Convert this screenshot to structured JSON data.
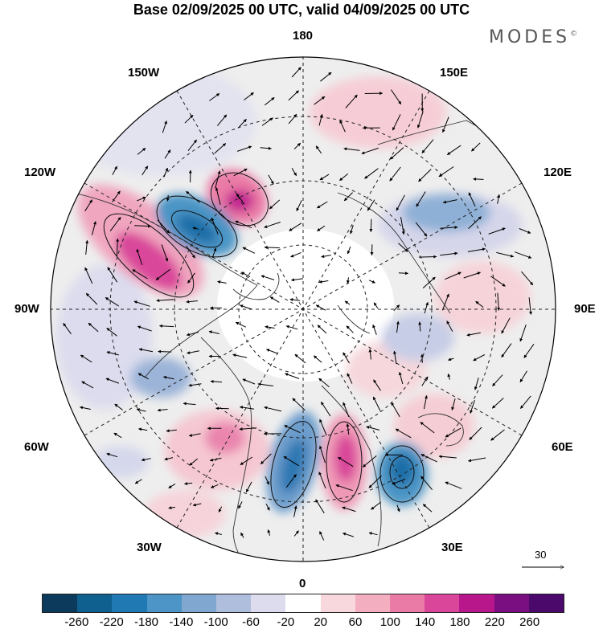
{
  "title": "Base 02/09/2025 00 UTC, valid 04/09/2025 00 UTC",
  "brand": "MODES",
  "brand_mark": "©",
  "map": {
    "projection": "north-polar-stereographic",
    "labels": {
      "top": "180",
      "bottom": "0",
      "left": "90W",
      "right": "90E",
      "upper_left_1": "150W",
      "upper_left_2": "120W",
      "lower_left_1": "60W",
      "lower_left_2": "30W",
      "upper_right_1": "150E",
      "upper_right_2": "120E",
      "lower_right_1": "60E",
      "lower_right_2": "30E"
    }
  },
  "reference_vector": {
    "label": "30"
  },
  "colorbar": {
    "ticks": [
      "-260",
      "-220",
      "-180",
      "-140",
      "-100",
      "-60",
      "-20",
      "20",
      "60",
      "100",
      "140",
      "180",
      "220",
      "260"
    ],
    "colors": [
      "#0b3a5c",
      "#0f5f8f",
      "#2179b4",
      "#4c95c6",
      "#7fa7cf",
      "#b0bede",
      "#dcdcee",
      "#ffffff",
      "#f8d8dc",
      "#f3aebf",
      "#ea7aa6",
      "#d9469a",
      "#b8178c",
      "#7a0f82",
      "#4b0a6b"
    ]
  },
  "colors": {
    "positive": "#e66aa6",
    "negative": "#3f7fb5",
    "land": "#e9e9e9",
    "grid": "#222222"
  }
}
